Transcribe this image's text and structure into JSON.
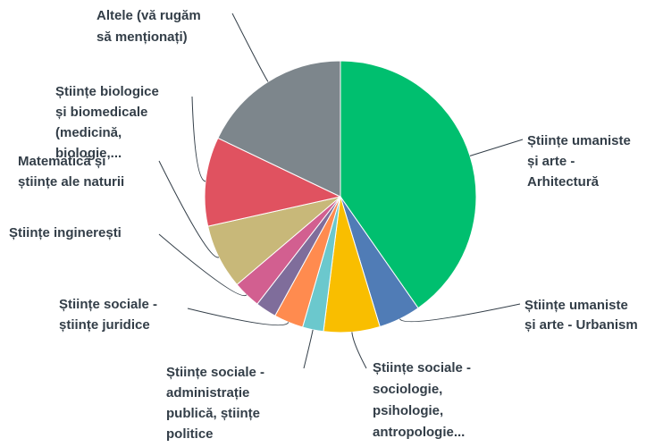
{
  "chart_data": {
    "type": "pie",
    "categories": [
      "Științe umaniste\nși arte -\nArhitectură",
      "Științe umaniste\nși arte - Urbanism",
      "Științe sociale -\nsociologie,\npsihologie,\nantropologie...",
      "Științe sociale -\nadministrație\npublică, științe\npolitice",
      "Științe sociale -\nștiințe juridice",
      null,
      "Științe inginerești",
      "Matematică și\nștiințe ale naturii",
      "Științe biologice\nși biomedicale\n(medicină,\nbiologie,...",
      "Altele (vă rugăm\nsă menționați)"
    ],
    "values": [
      40.3,
      5,
      6.7,
      2.5,
      3.5,
      2.5,
      3.3,
      7.7,
      10.6,
      17.9
    ],
    "colors": [
      "#00bf6f",
      "#507cb6",
      "#f9be00",
      "#6bc8cd",
      "#ff8b4f",
      "#7f6d9b",
      "#d25f90",
      "#c8b879",
      "#e05260",
      "#7d868c"
    ]
  }
}
